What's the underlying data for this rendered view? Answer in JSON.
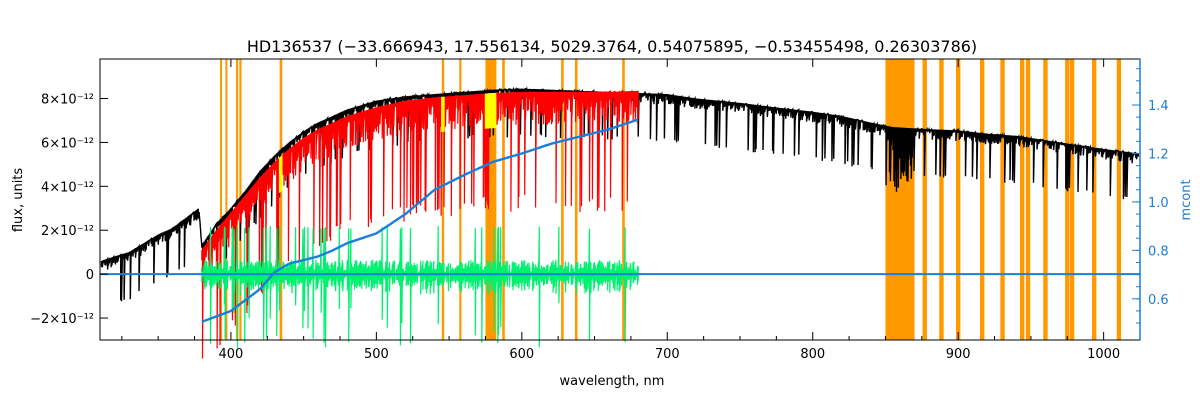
{
  "chart_data": {
    "type": "line",
    "title": "HD136537    (−33.666943, 17.556134, 5029.3764, 0.54075895, −0.53455498, 0.26303786)",
    "xlabel": "wavelength, nm",
    "ylabel": "flux, units",
    "ylabel_right": "mcont",
    "xlim": [
      310,
      1025
    ],
    "ylim": [
      -3e-12,
      9.8e-12
    ],
    "ylim_right": [
      0.43,
      1.59
    ],
    "x_ticks": [
      400,
      500,
      600,
      700,
      800,
      900,
      1000
    ],
    "x_tick_labels": [
      "400",
      "500",
      "600",
      "700",
      "800",
      "900",
      "1000"
    ],
    "y_ticks": [
      -2e-12,
      0,
      2e-12,
      4e-12,
      6e-12,
      8e-12
    ],
    "y_tick_labels": [
      "−2×10⁻¹²",
      "0",
      "2×10⁻¹²",
      "4×10⁻¹²",
      "6×10⁻¹²",
      "8×10⁻¹²"
    ],
    "y_right_ticks": [
      0.6,
      0.8,
      1.0,
      1.2,
      1.4
    ],
    "y_right_tick_labels": [
      "0.6",
      "0.8",
      "1.0",
      "1.2",
      "1.4"
    ],
    "masked_regions": [
      [
        392.5,
        393.8
      ],
      [
        396.2,
        397.5
      ],
      [
        403.5,
        405
      ],
      [
        405.8,
        407.3
      ],
      [
        433.5,
        435.3
      ],
      [
        545,
        546.6
      ],
      [
        557,
        558.5
      ],
      [
        575,
        582.5
      ],
      [
        586.5,
        588.3
      ],
      [
        627,
        628.8
      ],
      [
        636.5,
        638.3
      ],
      [
        669,
        670.8
      ],
      [
        850,
        870
      ],
      [
        875.5,
        878.5
      ],
      [
        887,
        890
      ],
      [
        898.5,
        901.5
      ],
      [
        915,
        918
      ],
      [
        929,
        932
      ],
      [
        942.5,
        945.5
      ],
      [
        946.5,
        949.5
      ],
      [
        958.5,
        961.5
      ],
      [
        973.5,
        976.5
      ],
      [
        976.8,
        979.8
      ],
      [
        992,
        995
      ],
      [
        1009,
        1012
      ]
    ],
    "colors": {
      "observed": "#000000",
      "model": "#ff0000",
      "model_alt": "#ffff00",
      "residuals": "#00f070",
      "continuum": "#1a7fd8",
      "mask": "#ff9900",
      "axes_right": "#1a7fd8"
    },
    "series": [
      {
        "key": "observed",
        "axis": "left",
        "x": [
          311,
          320,
          330,
          340,
          350,
          360,
          370,
          378,
          380,
          390,
          400,
          410,
          420,
          430,
          440,
          450,
          460,
          480,
          500,
          520,
          540,
          560,
          580,
          600,
          620,
          640,
          660,
          680,
          700,
          720,
          750,
          780,
          800,
          820,
          840,
          855,
          880,
          900,
          920,
          940,
          960,
          980,
          1000,
          1024
        ],
        "y": [
          6e-13,
          8e-13,
          1e-12,
          1.4e-12,
          1.8e-12,
          2.1e-12,
          2.6e-12,
          3e-12,
          1.3e-12,
          2.3e-12,
          3e-12,
          3.8e-12,
          4.7e-12,
          5.4e-12,
          6e-12,
          6.5e-12,
          6.9e-12,
          7.5e-12,
          7.9e-12,
          8.1e-12,
          8.2e-12,
          8.3e-12,
          8.4e-12,
          8.45e-12,
          8.4e-12,
          8.35e-12,
          8.3e-12,
          8.25e-12,
          8.2e-12,
          8e-12,
          7.8e-12,
          7.55e-12,
          7.4e-12,
          7.2e-12,
          6.9e-12,
          6.7e-12,
          6.6e-12,
          6.55e-12,
          6.4e-12,
          6.3e-12,
          6.1e-12,
          5.9e-12,
          5.7e-12,
          5.5e-12
        ]
      },
      {
        "key": "model",
        "axis": "left",
        "x": [
          380,
          390,
          400,
          410,
          420,
          430,
          440,
          450,
          460,
          480,
          500,
          520,
          540,
          560,
          580,
          600,
          620,
          640,
          660,
          680
        ],
        "y": [
          1.1e-12,
          2e-12,
          2.8e-12,
          3.6e-12,
          4.4e-12,
          5.1e-12,
          5.7e-12,
          6.2e-12,
          6.6e-12,
          7.2e-12,
          7.6e-12,
          7.9e-12,
          8.05e-12,
          8.15e-12,
          8.25e-12,
          8.3e-12,
          8.3e-12,
          8.3e-12,
          8.3e-12,
          8.35e-12
        ]
      },
      {
        "key": "residuals",
        "axis": "left",
        "x": [
          380,
          680
        ],
        "y": [
          0,
          0
        ]
      },
      {
        "key": "continuum",
        "axis": "right",
        "x": [
          380,
          400,
          420,
          430,
          440,
          450,
          460,
          470,
          480,
          500,
          520,
          540,
          560,
          580,
          600,
          620,
          640,
          660,
          680
        ],
        "y": [
          0.505,
          0.55,
          0.64,
          0.71,
          0.745,
          0.76,
          0.775,
          0.8,
          0.83,
          0.87,
          0.95,
          1.05,
          1.11,
          1.165,
          1.2,
          1.24,
          1.27,
          1.3,
          1.34
        ]
      },
      {
        "key": "zero_line",
        "axis": "left",
        "x": [
          310,
          1025
        ],
        "y": [
          0,
          0
        ]
      }
    ]
  }
}
